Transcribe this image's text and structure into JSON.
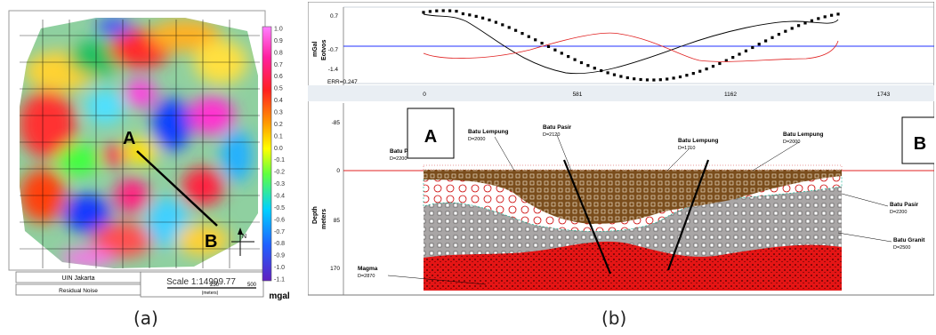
{
  "figure": {
    "caption_a": "(a)",
    "caption_b": "(b)"
  },
  "panel_a": {
    "point_a": "A",
    "point_b": "B",
    "colorbar_unit": "mgal",
    "colorbar_ticks": [
      "1.0",
      "0.9",
      "0.8",
      "0.7",
      "0.6",
      "0.5",
      "0.4",
      "0.3",
      "0.2",
      "0.1",
      "0.0",
      "-0.1",
      "-0.2",
      "-0.3",
      "-0.4",
      "-0.5",
      "-0.6",
      "-0.7",
      "-0.8",
      "-0.9",
      "-1.0",
      "-1.1"
    ],
    "legend_institution": "UIN Jakarta",
    "legend_map_title": "Residual Noise",
    "scale_text": "Scale 1:14999.77",
    "scale_bar_labels": [
      "250",
      "500"
    ],
    "scale_bar_unit": "(meters)",
    "north_label": "N"
  },
  "panel_b": {
    "profile_ylabel_1": "mGal",
    "profile_ylabel_2": "Eotvos",
    "profile_yticks": [
      "0.7",
      "-0.7",
      "-1.4"
    ],
    "err_text": "ERR=0.247",
    "distance_ticks": [
      "0",
      "581",
      "1162",
      "1743"
    ],
    "depth_ylabel_1": "Depth",
    "depth_ylabel_2": "meters",
    "depth_yticks": [
      "-85",
      "0",
      "85",
      "170"
    ],
    "point_a": "A",
    "point_b": "B",
    "layers": [
      {
        "name": "Batu Lempung",
        "density": "D=2000"
      },
      {
        "name": "Batu Pasir",
        "density": "D=2120"
      },
      {
        "name": "Batu Lempung",
        "density": "D=1710"
      },
      {
        "name": "Batu Lempung",
        "density": "D=2000"
      },
      {
        "name": "Batu Pasir",
        "density": "D=2200"
      },
      {
        "name": "Batu Granit",
        "density": "D=2500"
      },
      {
        "name": "Magma",
        "density": "D=2870"
      },
      {
        "name": "Batu P",
        "density": "D=2200"
      }
    ]
  }
}
